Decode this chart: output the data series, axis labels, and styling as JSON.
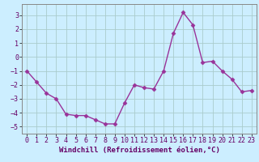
{
  "x": [
    0,
    1,
    2,
    3,
    4,
    5,
    6,
    7,
    8,
    9,
    10,
    11,
    12,
    13,
    14,
    15,
    16,
    17,
    18,
    19,
    20,
    21,
    22,
    23
  ],
  "y": [
    -1,
    -1.8,
    -2.6,
    -3.0,
    -4.1,
    -4.2,
    -4.2,
    -4.5,
    -4.8,
    -4.8,
    -3.3,
    -2.0,
    -2.2,
    -2.3,
    -1.0,
    1.7,
    3.2,
    2.3,
    -0.4,
    -0.3,
    -1.0,
    -1.6,
    -2.5,
    -2.4
  ],
  "line_color": "#993399",
  "marker": "D",
  "markersize": 2.5,
  "linewidth": 1.0,
  "bg_color": "#cceeff",
  "grid_color": "#aacccc",
  "xlabel": "Windchill (Refroidissement éolien,°C)",
  "xlabel_fontsize": 6.5,
  "tick_fontsize": 6.0,
  "ylim": [
    -5.5,
    3.8
  ],
  "yticks": [
    -5,
    -4,
    -3,
    -2,
    -1,
    0,
    1,
    2,
    3
  ],
  "xticks": [
    0,
    1,
    2,
    3,
    4,
    5,
    6,
    7,
    8,
    9,
    10,
    11,
    12,
    13,
    14,
    15,
    16,
    17,
    18,
    19,
    20,
    21,
    22,
    23
  ]
}
